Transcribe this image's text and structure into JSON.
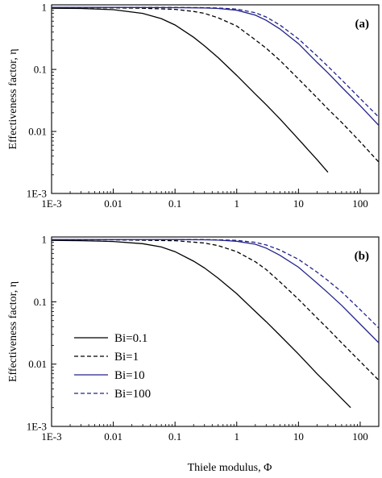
{
  "chart_data": [
    {
      "type": "line",
      "panel_label": "(a)",
      "xlabel": "",
      "ylabel": "Effectiveness factor, η",
      "xscale": "log",
      "yscale": "log",
      "xlim": [
        0.001,
        200
      ],
      "ylim": [
        0.001,
        1.1
      ],
      "x_ticks": [
        "1E-3",
        "0.01",
        "0.1",
        "1",
        "10",
        "100"
      ],
      "y_ticks": [
        "1E-3",
        "0.01",
        "0.1",
        "1"
      ],
      "legend": false,
      "grid": false,
      "series": [
        {
          "name": "Bi=0.1",
          "style": "solid",
          "color": "#000000",
          "x": [
            0.001,
            0.003,
            0.01,
            0.03,
            0.06,
            0.1,
            0.2,
            0.3,
            0.5,
            1,
            2,
            3,
            5,
            10,
            20,
            30
          ],
          "y": [
            0.97,
            0.96,
            0.92,
            0.8,
            0.66,
            0.52,
            0.33,
            0.24,
            0.155,
            0.08,
            0.04,
            0.027,
            0.016,
            0.0075,
            0.0035,
            0.0022
          ]
        },
        {
          "name": "Bi=1",
          "style": "dashed",
          "color": "#000000",
          "x": [
            0.001,
            0.01,
            0.03,
            0.1,
            0.2,
            0.3,
            0.5,
            1,
            2,
            3,
            5,
            10,
            20,
            30,
            50,
            100,
            200
          ],
          "y": [
            0.99,
            0.985,
            0.97,
            0.93,
            0.86,
            0.8,
            0.68,
            0.5,
            0.3,
            0.22,
            0.14,
            0.07,
            0.035,
            0.023,
            0.014,
            0.0068,
            0.0032
          ]
        },
        {
          "name": "Bi=10",
          "style": "solid",
          "color": "#22228a",
          "x": [
            0.001,
            0.01,
            0.1,
            0.3,
            0.5,
            1,
            2,
            3,
            5,
            10,
            20,
            30,
            50,
            100,
            200
          ],
          "y": [
            1.0,
            1.0,
            0.99,
            0.98,
            0.96,
            0.9,
            0.75,
            0.62,
            0.45,
            0.26,
            0.13,
            0.088,
            0.052,
            0.026,
            0.0125
          ]
        },
        {
          "name": "Bi=100",
          "style": "dashed",
          "color": "#22228a",
          "x": [
            0.001,
            0.01,
            0.1,
            0.3,
            0.5,
            1,
            2,
            3,
            5,
            10,
            20,
            30,
            50,
            100,
            200
          ],
          "y": [
            1.0,
            1.0,
            1.0,
            0.99,
            0.98,
            0.94,
            0.82,
            0.7,
            0.52,
            0.31,
            0.165,
            0.112,
            0.068,
            0.034,
            0.017
          ]
        }
      ]
    },
    {
      "type": "line",
      "panel_label": "(b)",
      "xlabel": "Thiele modulus, Φ",
      "ylabel": "Effectiveness factor, η",
      "xscale": "log",
      "yscale": "log",
      "xlim": [
        0.001,
        200
      ],
      "ylim": [
        0.001,
        1.1
      ],
      "x_ticks": [
        "1E-3",
        "0.01",
        "0.1",
        "1",
        "10",
        "100"
      ],
      "y_ticks": [
        "1E-3",
        "0.01",
        "0.1",
        "1"
      ],
      "legend": true,
      "legend_position": "bottom-left",
      "grid": false,
      "series": [
        {
          "name": "Bi=0.1",
          "style": "solid",
          "color": "#000000",
          "x": [
            0.001,
            0.003,
            0.01,
            0.03,
            0.06,
            0.1,
            0.2,
            0.3,
            0.5,
            1,
            2,
            3,
            5,
            10,
            20,
            30,
            50,
            70
          ],
          "y": [
            0.97,
            0.96,
            0.93,
            0.86,
            0.76,
            0.64,
            0.45,
            0.35,
            0.24,
            0.135,
            0.07,
            0.048,
            0.029,
            0.0145,
            0.007,
            0.0047,
            0.0028,
            0.002
          ]
        },
        {
          "name": "Bi=1",
          "style": "dashed",
          "color": "#000000",
          "x": [
            0.001,
            0.01,
            0.1,
            0.3,
            0.5,
            1,
            2,
            3,
            5,
            10,
            20,
            30,
            50,
            100,
            200
          ],
          "y": [
            0.99,
            0.99,
            0.96,
            0.88,
            0.8,
            0.64,
            0.44,
            0.33,
            0.21,
            0.11,
            0.055,
            0.037,
            0.022,
            0.011,
            0.0055
          ]
        },
        {
          "name": "Bi=10",
          "style": "solid",
          "color": "#22228a",
          "x": [
            0.001,
            0.01,
            0.1,
            0.3,
            0.5,
            1,
            2,
            3,
            5,
            10,
            20,
            30,
            50,
            100,
            200
          ],
          "y": [
            1.0,
            1.0,
            1.0,
            0.99,
            0.98,
            0.94,
            0.84,
            0.73,
            0.56,
            0.36,
            0.2,
            0.14,
            0.088,
            0.044,
            0.022
          ]
        },
        {
          "name": "Bi=100",
          "style": "dashed",
          "color": "#22228a",
          "x": [
            0.001,
            0.01,
            0.1,
            0.3,
            0.5,
            1,
            2,
            3,
            5,
            10,
            20,
            30,
            50,
            100,
            200
          ],
          "y": [
            1.0,
            1.0,
            1.0,
            1.0,
            0.99,
            0.97,
            0.9,
            0.82,
            0.68,
            0.48,
            0.3,
            0.22,
            0.145,
            0.075,
            0.038
          ]
        }
      ]
    }
  ]
}
